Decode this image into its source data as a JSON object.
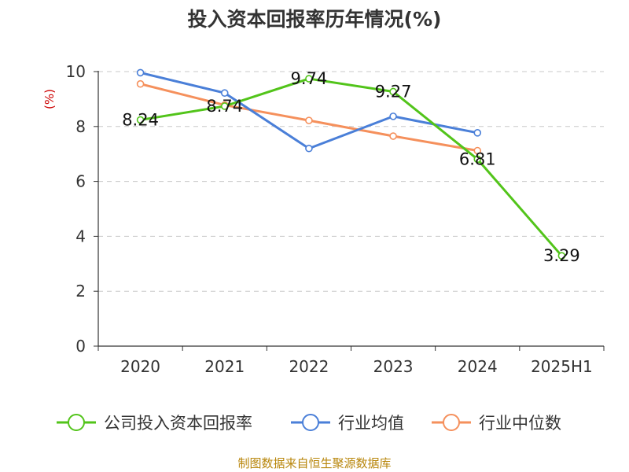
{
  "chart_data": {
    "type": "line",
    "title": "投入资本回报率历年情况(%)",
    "ylabel": "(%)",
    "categories": [
      "2020",
      "2021",
      "2022",
      "2023",
      "2024",
      "2025H1"
    ],
    "ylim": [
      0,
      10
    ],
    "yticks": [
      0,
      2,
      4,
      6,
      8,
      10
    ],
    "grid": true,
    "legend_position": "bottom",
    "series": [
      {
        "name": "公司投入资本回报率",
        "color": "#52c41a",
        "values": [
          8.24,
          8.74,
          9.74,
          9.27,
          6.81,
          3.29
        ],
        "show_labels": true
      },
      {
        "name": "行业均值",
        "color": "#4a7fd8",
        "values": [
          9.96,
          9.22,
          7.2,
          8.37,
          7.77,
          null
        ],
        "show_labels": false
      },
      {
        "name": "行业中位数",
        "color": "#f5905c",
        "values": [
          9.55,
          8.78,
          8.22,
          7.65,
          7.12,
          null
        ],
        "show_labels": false
      }
    ]
  },
  "source": "制图数据来自恒生聚源数据库"
}
